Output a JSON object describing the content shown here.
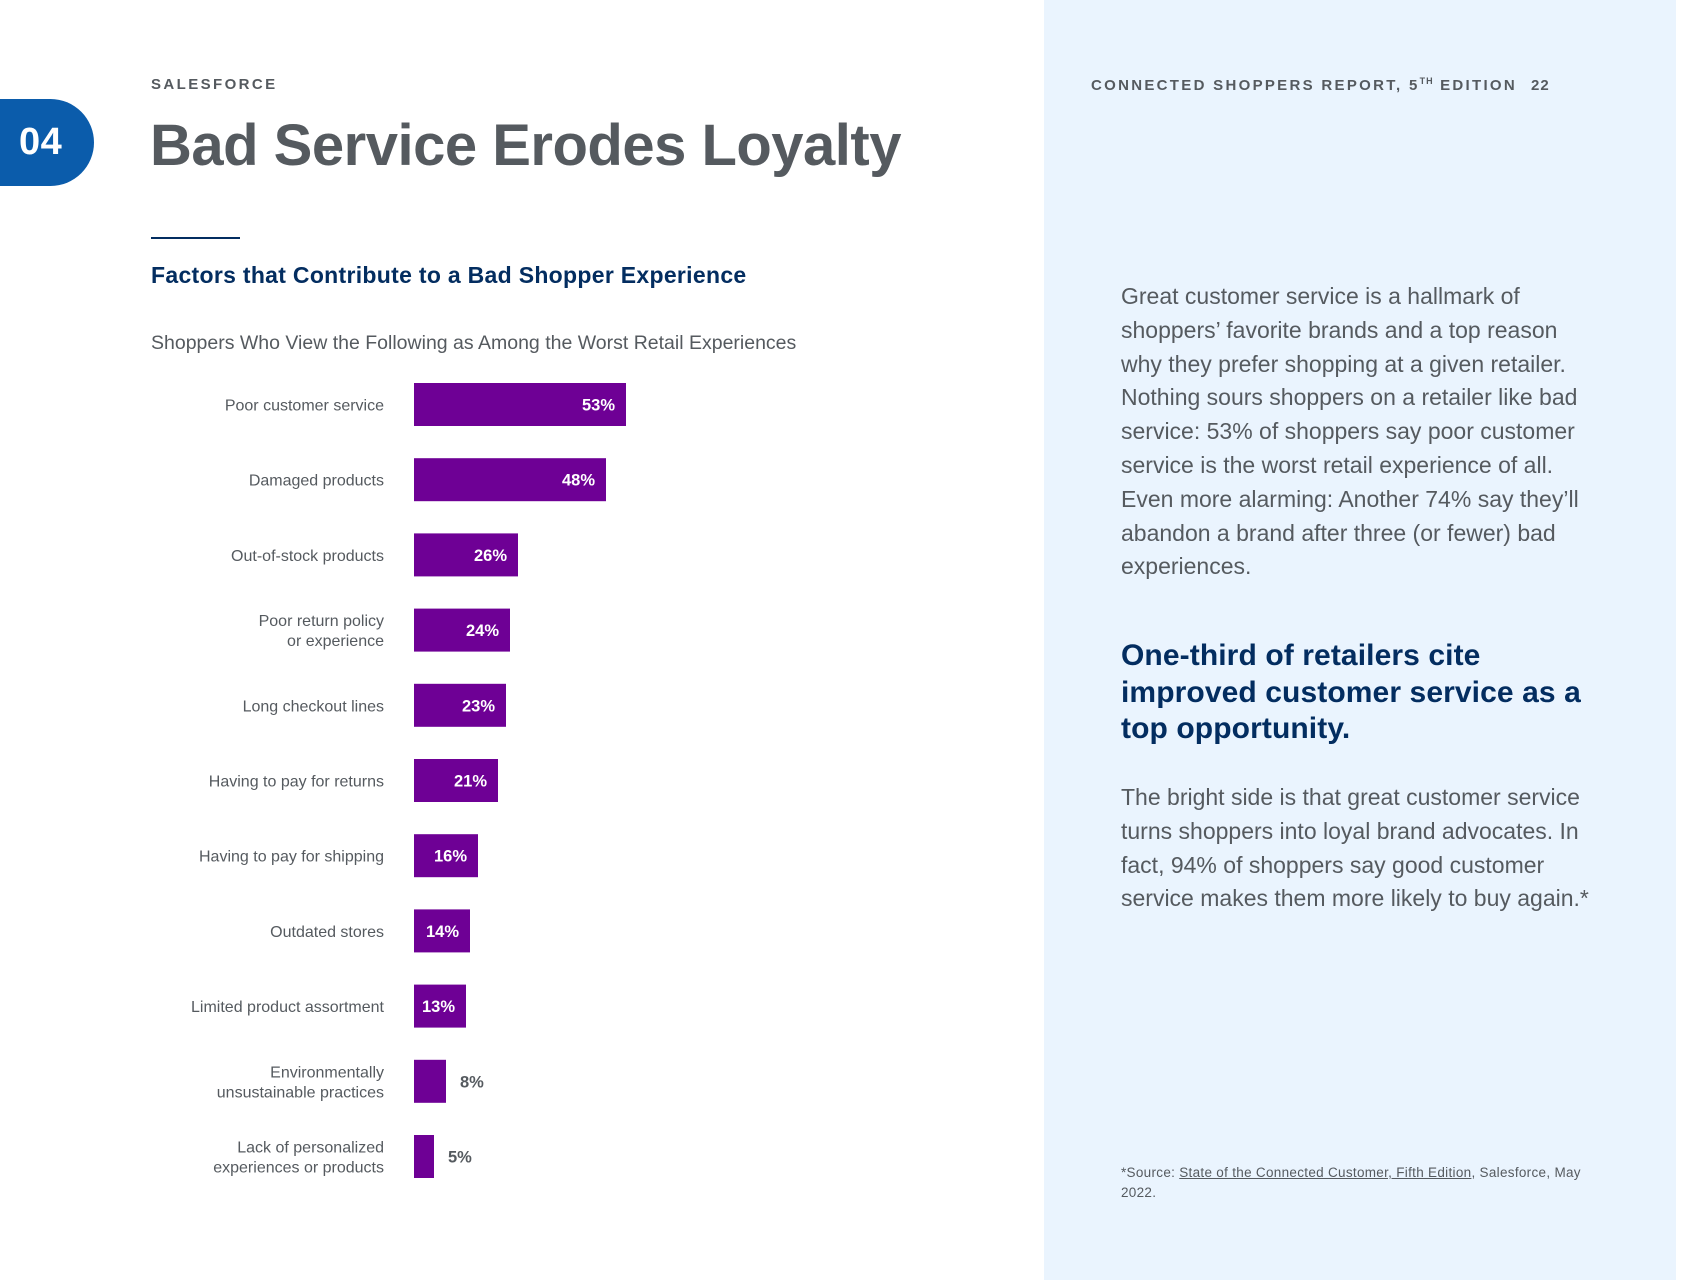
{
  "header": {
    "brand": "SALESFORCE",
    "report_title_prefix": "CONNECTED SHOPPERS REPORT, 5",
    "report_title_sup": "TH",
    "report_title_suffix": " EDITION",
    "page_number": "22",
    "section_number": "04",
    "page_title": "Bad Service Erodes Loyalty"
  },
  "colors": {
    "bar": "#6e0095",
    "navy": "#032d60",
    "tab_blue": "#0b5cab",
    "panel_bg": "#eaf4fe",
    "text_gray": "#555a5f"
  },
  "chart_data": {
    "type": "bar",
    "orientation": "horizontal",
    "title": "Factors that Contribute to a Bad Shopper Experience",
    "subtitle": "Shoppers Who View the Following as Among the Worst Retail Experiences",
    "categories": [
      [
        "Poor customer service"
      ],
      [
        "Damaged products"
      ],
      [
        "Out-of-stock products"
      ],
      [
        "Poor return policy",
        "or experience"
      ],
      [
        "Long checkout lines"
      ],
      [
        "Having to pay for returns"
      ],
      [
        "Having to pay for shipping"
      ],
      [
        "Outdated stores"
      ],
      [
        "Limited product assortment"
      ],
      [
        "Environmentally",
        "unsustainable practices"
      ],
      [
        "Lack of personalized",
        "experiences or products"
      ]
    ],
    "values": [
      53,
      48,
      26,
      24,
      23,
      21,
      16,
      14,
      13,
      8,
      5
    ],
    "value_labels": [
      "53%",
      "48%",
      "26%",
      "24%",
      "23%",
      "21%",
      "16%",
      "14%",
      "13%",
      "8%",
      "5%"
    ],
    "unit": "%",
    "xlim": [
      0,
      100
    ]
  },
  "sidebar": {
    "paragraph1": "Great customer service is a hallmark of shoppers’ favorite brands and a top reason why they prefer shopping at a given retailer. Nothing sours shoppers on a retailer like bad service: 53% of shoppers say poor customer service is the worst retail experience of all. Even more alarming: Another 74% say they’ll abandon a brand after three (or fewer) bad experiences.",
    "highlight": "One-third of retailers cite improved customer service as a top opportunity.",
    "paragraph2": "The bright side is that great customer service turns shoppers into loyal brand advocates. In fact, 94% of shoppers say good customer service makes them more likely to buy again.*",
    "footnote_prefix": "*Source: ",
    "footnote_link": "State of the Connected Customer, Fifth Edition",
    "footnote_suffix": ", Salesforce, May 2022."
  }
}
